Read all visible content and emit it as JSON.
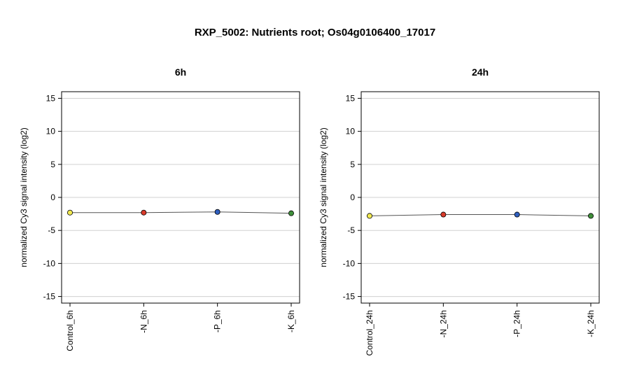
{
  "title": "RXP_5002: Nutrients root; Os04g0106400_17017",
  "chart_data": [
    {
      "type": "line",
      "title": "6h",
      "ylabel": "normalized Cy3 signal intensity (log2)",
      "ylim": [
        -16,
        16
      ],
      "yticks": [
        -15,
        -10,
        -5,
        0,
        5,
        10,
        15
      ],
      "grid": true,
      "categories": [
        "Control_6h",
        "-N_6h",
        "-P_6h",
        "-K_6h"
      ],
      "values": [
        -2.3,
        -2.3,
        -2.2,
        -2.4
      ],
      "point_colors": [
        "#f2ea52",
        "#d93b2b",
        "#2f5fbf",
        "#3f8f3a"
      ]
    },
    {
      "type": "line",
      "title": "24h",
      "ylabel": "normalized Cy3 signal intensity (log2)",
      "ylim": [
        -16,
        16
      ],
      "yticks": [
        -15,
        -10,
        -5,
        0,
        5,
        10,
        15
      ],
      "grid": true,
      "categories": [
        "Control_24h",
        "-N_24h",
        "-P_24h",
        "-K_24h"
      ],
      "values": [
        -2.8,
        -2.6,
        -2.6,
        -2.8
      ],
      "point_colors": [
        "#f2ea52",
        "#d93b2b",
        "#2f5fbf",
        "#3f8f3a"
      ]
    }
  ]
}
